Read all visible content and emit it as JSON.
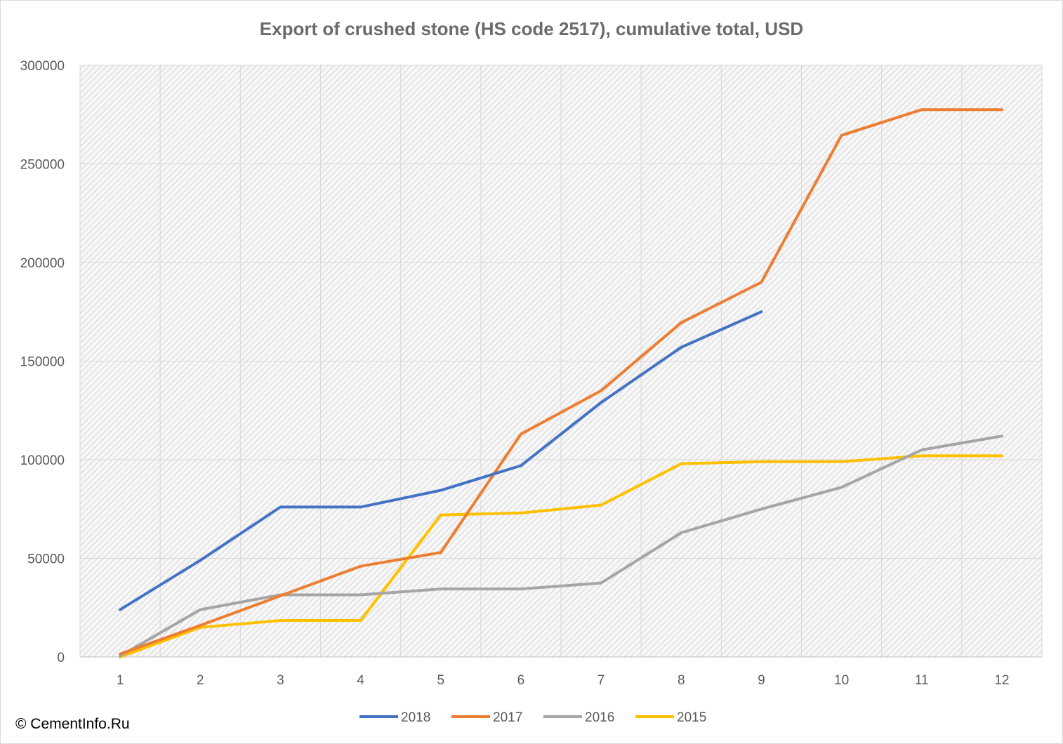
{
  "credit": "© CementInfo.Ru",
  "chart_data": {
    "type": "line",
    "title": "Export of crushed stone (HS code 2517), cumulative total, USD",
    "xlabel": "",
    "ylabel": "",
    "x": [
      1,
      2,
      3,
      4,
      5,
      6,
      7,
      8,
      9,
      10,
      11,
      12
    ],
    "x_tick_labels": [
      "1",
      "2",
      "3",
      "4",
      "5",
      "6",
      "7",
      "8",
      "9",
      "10",
      "11",
      "12"
    ],
    "ylim": [
      0,
      300000
    ],
    "y_ticks": [
      0,
      50000,
      100000,
      150000,
      200000,
      250000,
      300000
    ],
    "y_tick_labels": [
      "0",
      "50000",
      "100000",
      "150000",
      "200000",
      "250000",
      "300000"
    ],
    "grid": true,
    "legend_position": "bottom",
    "series": [
      {
        "name": "2018",
        "color": "#4472c4",
        "values": [
          24000,
          49000,
          76000,
          76000,
          84500,
          97000,
          129000,
          157000,
          175000,
          null,
          null,
          null
        ]
      },
      {
        "name": "2017",
        "color": "#ed7d31",
        "values": [
          1500,
          16000,
          31000,
          46000,
          53000,
          113000,
          135000,
          169500,
          190000,
          264500,
          277500,
          277500
        ]
      },
      {
        "name": "2016",
        "color": "#a5a5a5",
        "values": [
          500,
          24000,
          31500,
          31500,
          34500,
          34500,
          37500,
          63000,
          75000,
          86000,
          105000,
          112000
        ]
      },
      {
        "name": "2015",
        "color": "#ffc000",
        "values": [
          0,
          15000,
          18500,
          18500,
          72000,
          73000,
          77000,
          98000,
          99000,
          99000,
          102000,
          102000
        ]
      }
    ]
  }
}
